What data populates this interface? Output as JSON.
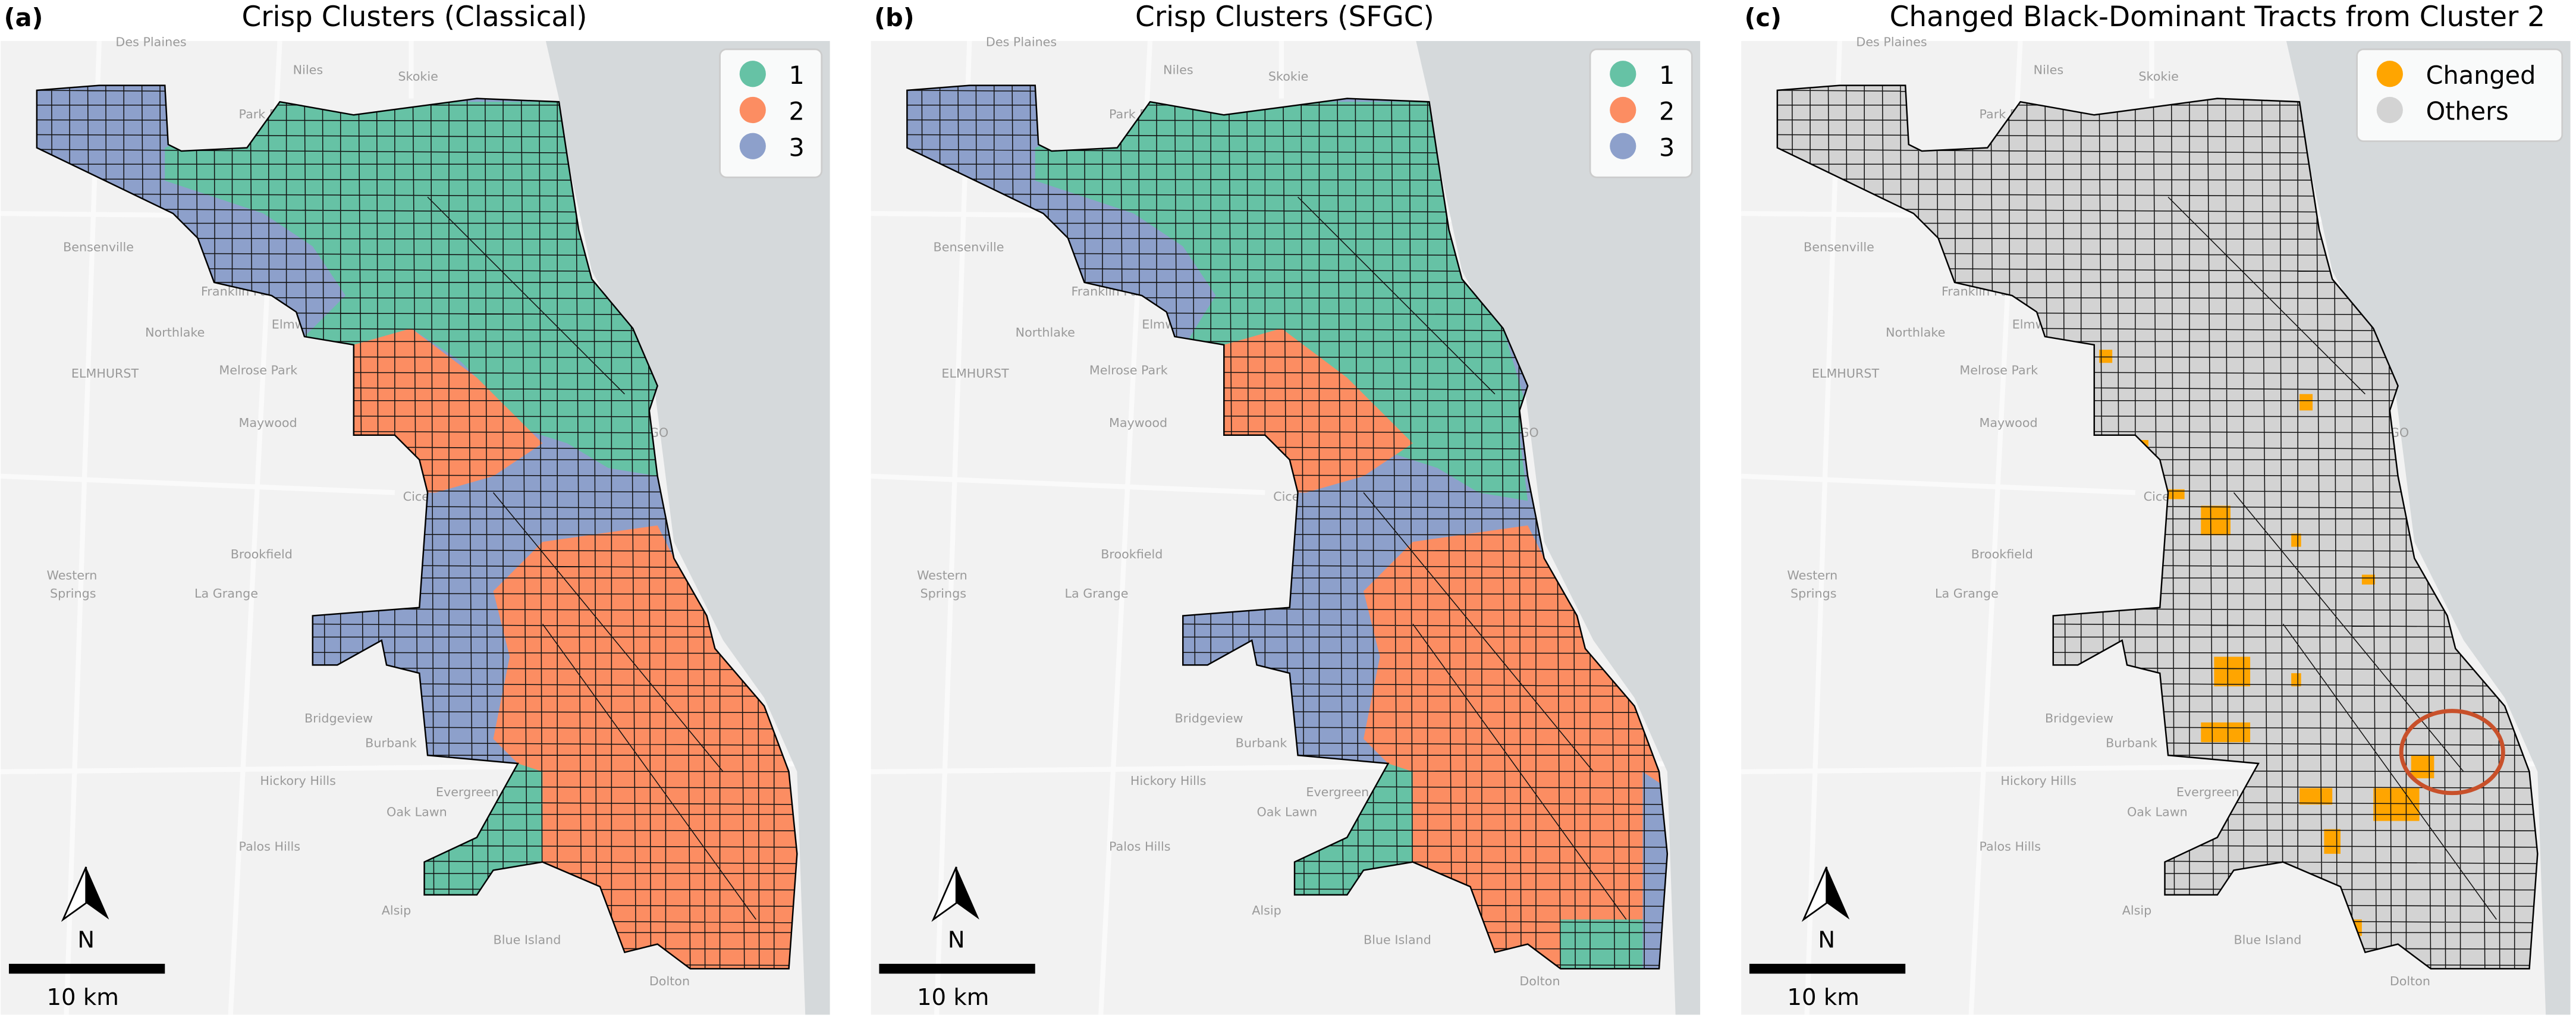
{
  "panels": [
    {
      "label": "(a)",
      "title": "Crisp Clusters (Classical)",
      "legend": [
        {
          "label": "1",
          "color": "#66c2a5"
        },
        {
          "label": "2",
          "color": "#fc8d62"
        },
        {
          "label": "3",
          "color": "#8da0cb"
        }
      ],
      "north": "N",
      "scale": "10 km"
    },
    {
      "label": "(b)",
      "title": "Crisp Clusters (SFGC)",
      "legend": [
        {
          "label": "1",
          "color": "#66c2a5"
        },
        {
          "label": "2",
          "color": "#fc8d62"
        },
        {
          "label": "3",
          "color": "#8da0cb"
        }
      ],
      "north": "N",
      "scale": "10 km"
    },
    {
      "label": "(c)",
      "title": "Changed Black-Dominant Tracts from Cluster 2",
      "legend": [
        {
          "label": "Changed",
          "color": "#ffa500"
        },
        {
          "label": "Others",
          "color": "#d3d3d3"
        }
      ],
      "north": "N",
      "scale": "10 km"
    }
  ],
  "basemap_labels": [
    "Des Plaines",
    "Niles",
    "Skokie",
    "Park Ridge",
    "Bensenville",
    "Franklin Park",
    "Northlake",
    "Elmwood",
    "ELMHURST",
    "Melrose Park",
    "Maywood",
    "Cicero",
    "Brookfield",
    "Western",
    "Springs",
    "La Grange",
    "Bridgeview",
    "Burbank",
    "Hickory Hills",
    "Oak Lawn",
    "Evergreen Park",
    "Palos Hills",
    "Alsip",
    "Blue Island",
    "Dolton",
    "GO"
  ]
}
